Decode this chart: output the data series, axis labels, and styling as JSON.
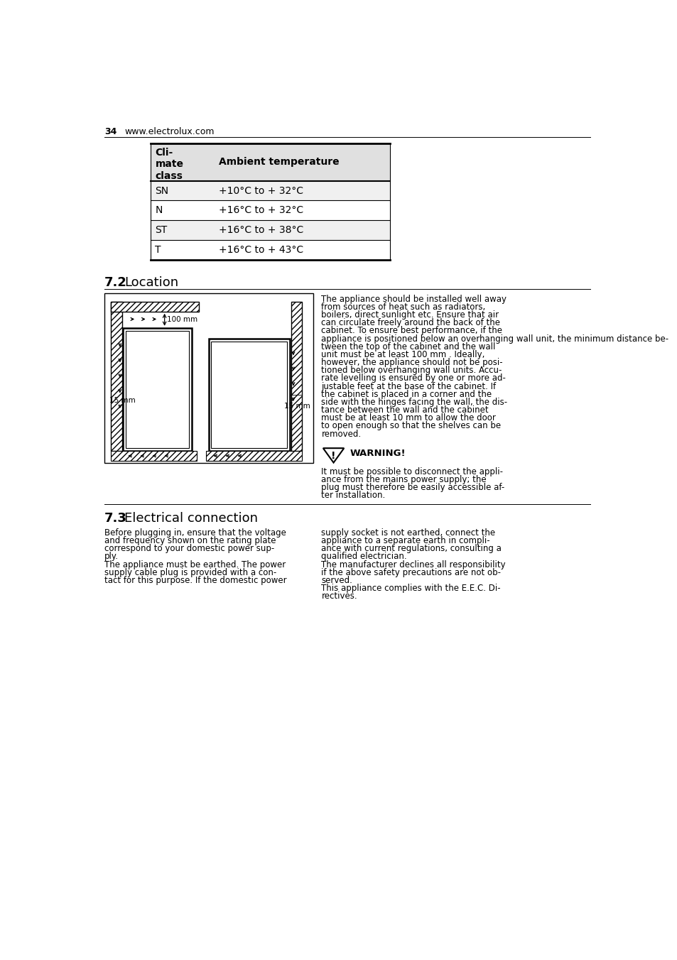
{
  "page_number": "34",
  "website": "www.electrolux.com",
  "bg_color": "#ffffff",
  "table": {
    "col1_label": "Cli-\nmate\nclass",
    "col2_label": "Ambient temperature",
    "rows": [
      [
        "SN",
        "+10°C to + 32°C"
      ],
      [
        "N",
        "+16°C to + 32°C"
      ],
      [
        "ST",
        "+16°C to + 38°C"
      ],
      [
        "T",
        "+16°C to + 43°C"
      ]
    ],
    "header_bg": "#e0e0e0",
    "row_bgs": [
      "#f0f0f0",
      "#ffffff",
      "#f0f0f0",
      "#ffffff"
    ]
  },
  "sec72_number": "7.2",
  "sec72_title": "Location",
  "sec72_right_lines": [
    "The appliance should be installed well away",
    "from sources of heat such as radiators,",
    "boilers, direct sunlight etc. Ensure that air",
    "can circulate freely around the back of the",
    "cabinet. To ensure best performance, if the",
    "appliance is positioned below an overhanging wall unit, the minimum distance be-",
    "tween the top of the cabinet and the wall",
    "unit must be at least 100 mm . Ideally,",
    "however, the appliance should not be posi-",
    "tioned below overhanging wall units. Accu-",
    "rate levelling is ensured by one or more ad-",
    "justable feet at the base of the cabinet. If",
    "the cabinet is placed in a corner and the",
    "side with the hinges facing the wall, the dis-",
    "tance between the wall and the cabinet",
    "must be at least 10 mm to allow the door",
    "to open enough so that the shelves can be",
    "removed."
  ],
  "warning_label": "WARNING!",
  "warning_lines": [
    "It must be possible to disconnect the appli-",
    "ance from the mains power supply; the",
    "plug must therefore be easily accessible af-",
    "ter installation."
  ],
  "sec73_number": "7.3",
  "sec73_title": "Electrical connection",
  "sec73_left_lines": [
    "Before plugging in, ensure that the voltage",
    "and frequency shown on the rating plate",
    "correspond to your domestic power sup-",
    "ply.",
    "The appliance must be earthed. The power",
    "supply cable plug is provided with a con-",
    "tact for this purpose. If the domestic power"
  ],
  "sec73_right_lines": [
    "supply socket is not earthed, connect the",
    "appliance to a separate earth in compli-",
    "ance with current regulations, consulting a",
    "qualified electrician.",
    "The manufacturer declines all responsibility",
    "if the above safety precautions are not ob-",
    "served.",
    "This appliance complies with the E.E.C. Di-",
    "rectives."
  ]
}
